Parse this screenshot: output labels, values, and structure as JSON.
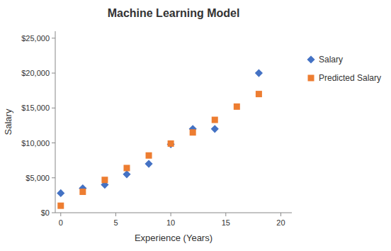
{
  "chart_data": {
    "type": "scatter",
    "title": "Machine Learning Model",
    "xlabel": "Experience (Years)",
    "ylabel": "Salary",
    "series": [
      {
        "name": "Salary",
        "color": "#4472C4",
        "marker": "diamond",
        "x": [
          0,
          2,
          4,
          6,
          8,
          10,
          12,
          14,
          18
        ],
        "values": [
          2800,
          3500,
          4000,
          5500,
          7000,
          9800,
          12000,
          12000,
          20000
        ]
      },
      {
        "name": "Predicted Salary",
        "color": "#ED7D31",
        "marker": "square",
        "x": [
          0,
          2,
          4,
          6,
          8,
          10,
          12,
          14,
          16,
          18
        ],
        "values": [
          1000,
          3000,
          4700,
          6400,
          8200,
          9900,
          11500,
          13300,
          15200,
          17000
        ]
      }
    ],
    "xlim": [
      -0.5,
      21
    ],
    "ylim": [
      0,
      26000
    ],
    "xticks": [
      0,
      5,
      10,
      15,
      20
    ],
    "yticks": [
      {
        "value": 0,
        "label": "$0"
      },
      {
        "value": 5000,
        "label": "$5,000"
      },
      {
        "value": 10000,
        "label": "$10,000"
      },
      {
        "value": 15000,
        "label": "$15,000"
      },
      {
        "value": 20000,
        "label": "$20,000"
      },
      {
        "value": 25000,
        "label": "$25,000"
      }
    ],
    "grid": false,
    "legend": "right"
  }
}
